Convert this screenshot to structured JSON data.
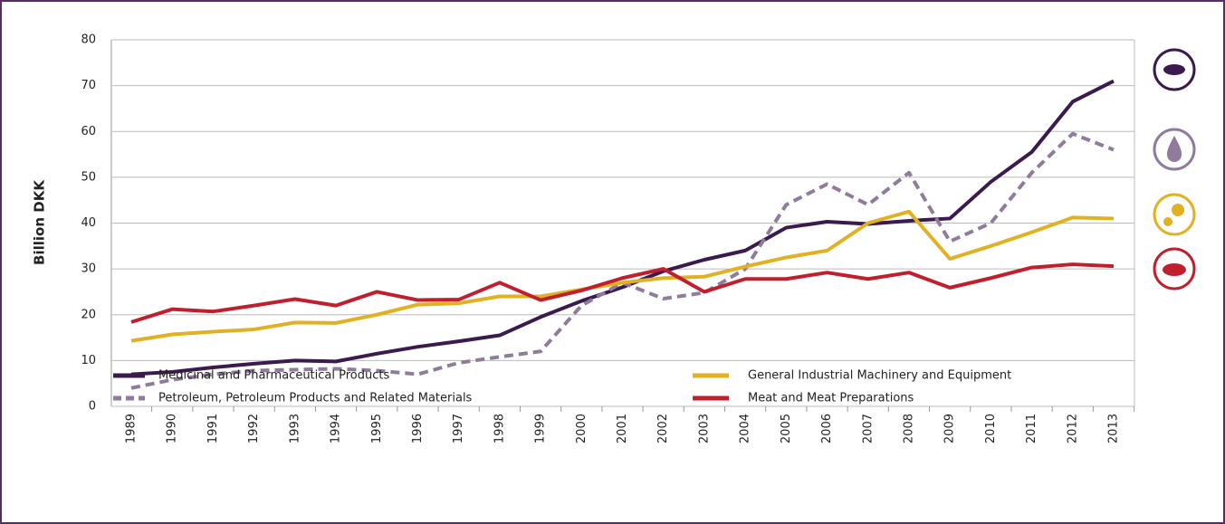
{
  "chart_data": {
    "type": "line",
    "y_label": "Billion DKK",
    "categories": [
      "1989",
      "1990",
      "1991",
      "1992",
      "1993",
      "1994",
      "1995",
      "1996",
      "1997",
      "1998",
      "1999",
      "2000",
      "2001",
      "2002",
      "2003",
      "2004",
      "2005",
      "2006",
      "2007",
      "2008",
      "2009",
      "2010",
      "2011",
      "2012",
      "2013"
    ],
    "series": [
      {
        "name": "Medicinal and Pharmaceutical Products",
        "color": "#3b1a4e",
        "dashed": false,
        "values": [
          7,
          7.5,
          8.5,
          9.3,
          10,
          9.8,
          11.5,
          13,
          14.2,
          15.5,
          19.5,
          23,
          26,
          29.5,
          32,
          34,
          39,
          40.3,
          39.8,
          40.5,
          41,
          49,
          55.5,
          66.5,
          71
        ]
      },
      {
        "name": "Petroleum, Petroleum Products and Related Materials",
        "color": "#907b9c",
        "dashed": true,
        "values": [
          4,
          5.8,
          7,
          7.8,
          8,
          8.2,
          7.8,
          7,
          9.5,
          10.8,
          12,
          22,
          27,
          23.5,
          24.8,
          30,
          44,
          48.5,
          44,
          51,
          36,
          40,
          51,
          59.5,
          56
        ]
      },
      {
        "name": "General Industrial Machinery and Equipment",
        "color": "#e1b124",
        "dashed": false,
        "values": [
          14.3,
          15.7,
          16.3,
          16.8,
          18.3,
          18.2,
          20,
          22.2,
          22.5,
          24,
          24,
          25.5,
          27,
          28,
          28.3,
          30.5,
          32.5,
          34,
          40,
          42.5,
          32.2,
          35,
          38,
          41.2,
          41
        ]
      },
      {
        "name": "Meat and Meat Preparations",
        "color": "#c0202e",
        "dashed": false,
        "values": [
          18.4,
          21.2,
          20.7,
          22,
          23.4,
          22,
          25,
          23.2,
          23.3,
          27,
          23.2,
          25.3,
          28,
          30,
          25,
          27.8,
          27.8,
          29.2,
          27.8,
          29.2,
          25.9,
          28,
          30.3,
          31,
          30.6
        ]
      }
    ],
    "ylim": [
      0,
      80
    ],
    "yticks": [
      0,
      10,
      20,
      30,
      40,
      50,
      60,
      70,
      80
    ],
    "grid": true
  }
}
